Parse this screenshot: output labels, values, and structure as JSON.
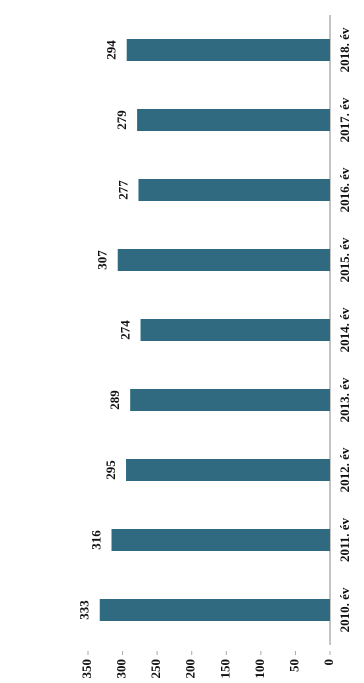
{
  "chart_data": {
    "type": "bar",
    "categories": [
      "2010. év",
      "2011. év",
      "2012. év",
      "2013. év",
      "2014. év",
      "2015. év",
      "2016. év",
      "2017. év",
      "2018. év"
    ],
    "values": [
      333,
      316,
      295,
      289,
      274,
      307,
      277,
      279,
      294
    ],
    "color": "#2f6a80",
    "ylim": [
      0,
      350
    ],
    "yticks": [
      0,
      50,
      100,
      150,
      200,
      250,
      300,
      350
    ]
  }
}
